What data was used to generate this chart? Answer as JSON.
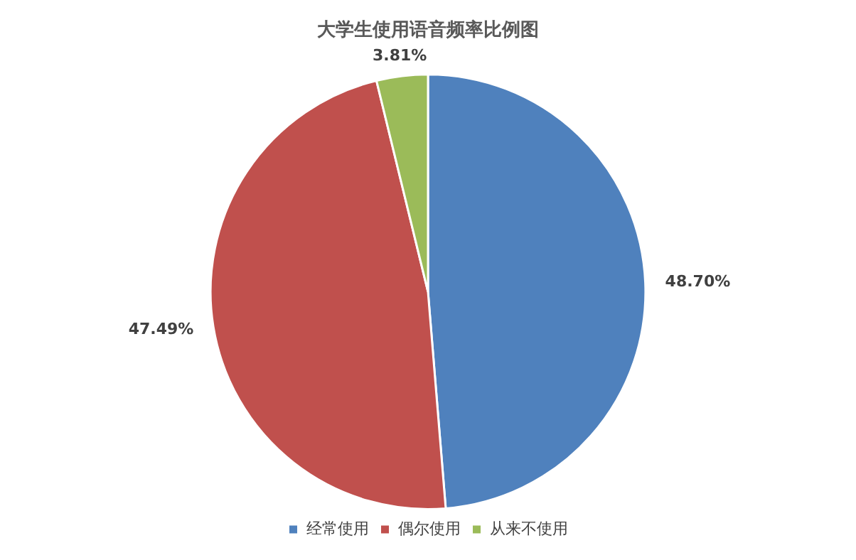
{
  "chart_data": {
    "type": "pie",
    "title": "大学生使用语音频率比例图",
    "categories": [
      "经常使用",
      "偶尔使用",
      "从来不使用"
    ],
    "values": [
      48.7,
      47.49,
      3.81
    ],
    "value_labels": [
      "48.70%",
      "47.49%",
      "3.81%"
    ],
    "colors": [
      "#4f81bd",
      "#c0504d",
      "#9bbb59"
    ],
    "legend": "bottom"
  }
}
